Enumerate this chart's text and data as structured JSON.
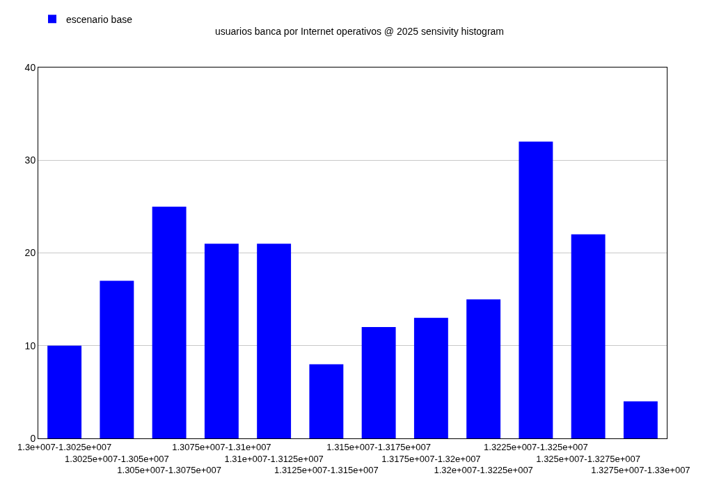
{
  "chart_data": {
    "type": "bar",
    "title": "usuarios banca por Internet operativos @ 2025 sensivity histogram",
    "categories": [
      "1.3e+007-1.3025e+007",
      "1.3025e+007-1.305e+007",
      "1.305e+007-1.3075e+007",
      "1.3075e+007-1.31e+007",
      "1.31e+007-1.3125e+007",
      "1.3125e+007-1.315e+007",
      "1.315e+007-1.3175e+007",
      "1.3175e+007-1.32e+007",
      "1.32e+007-1.3225e+007",
      "1.3225e+007-1.325e+007",
      "1.325e+007-1.3275e+007",
      "1.3275e+007-1.33e+007"
    ],
    "series": [
      {
        "name": "escenario base",
        "color": "#0000ff",
        "values": [
          10,
          17,
          25,
          21,
          21,
          8,
          12,
          13,
          15,
          32,
          22,
          4
        ]
      }
    ],
    "ylim": [
      0,
      40
    ],
    "yticks": [
      0,
      10,
      20,
      30,
      40
    ],
    "grid": "y",
    "legend": "top left"
  }
}
